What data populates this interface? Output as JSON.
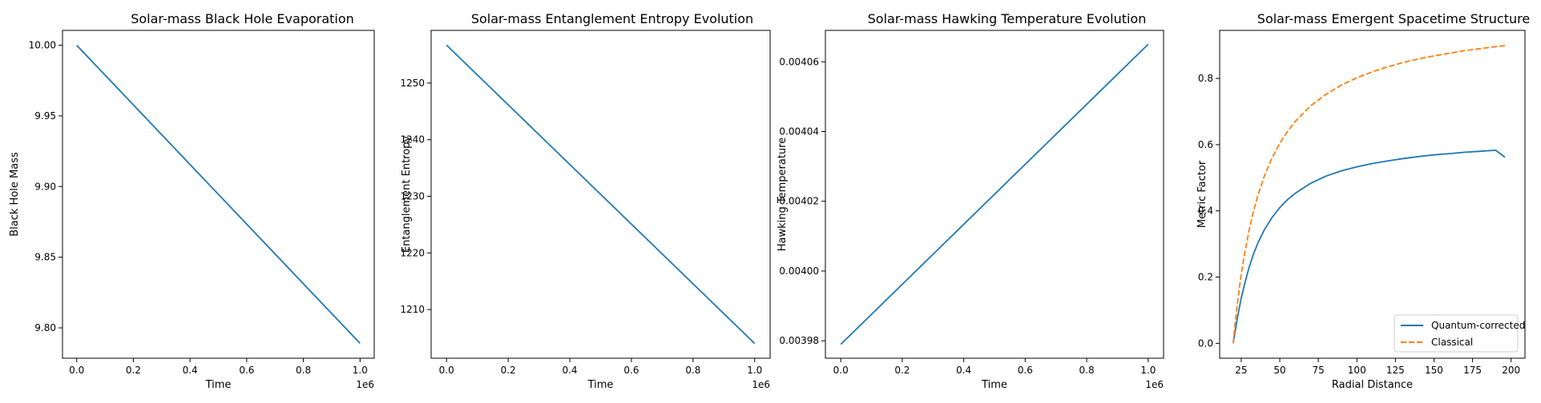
{
  "colors": {
    "blue": "#1f77b4",
    "orange": "#ff7f0e"
  },
  "chart_data": [
    {
      "type": "line",
      "title": "Solar-mass Black Hole Evaporation",
      "xlabel": "Time",
      "ylabel": "Black Hole Mass",
      "x_offset_label": "1e6",
      "xlim": [
        -0.05,
        1.05
      ],
      "ylim": [
        9.7785,
        10.0105
      ],
      "xticks": [
        0.0,
        0.2,
        0.4,
        0.6,
        0.8,
        1.0
      ],
      "xtick_labels": [
        "0.0",
        "0.2",
        "0.4",
        "0.6",
        "0.8",
        "1.0"
      ],
      "yticks": [
        9.8,
        9.85,
        9.9,
        9.95,
        10.0
      ],
      "ytick_labels": [
        "9.80",
        "9.85",
        "9.90",
        "9.95",
        "10.00"
      ],
      "grid": false,
      "series": [
        {
          "values_x": [
            0.0,
            1.0
          ],
          "values_y": [
            10.0,
            9.789
          ],
          "color": "#1f77b4",
          "dash": "solid"
        }
      ]
    },
    {
      "type": "line",
      "title": "Solar-mass Entanglement Entropy Evolution",
      "xlabel": "Time",
      "ylabel": "Entanglement Entropy",
      "x_offset_label": "1e6",
      "xlim": [
        -0.05,
        1.05
      ],
      "ylim": [
        1201.4,
        1259.3
      ],
      "xticks": [
        0.0,
        0.2,
        0.4,
        0.6,
        0.8,
        1.0
      ],
      "xtick_labels": [
        "0.0",
        "0.2",
        "0.4",
        "0.6",
        "0.8",
        "1.0"
      ],
      "yticks": [
        1210,
        1220,
        1230,
        1240,
        1250
      ],
      "ytick_labels": [
        "1210",
        "1220",
        "1230",
        "1240",
        "1250"
      ],
      "grid": false,
      "series": [
        {
          "values_x": [
            0.0,
            1.0
          ],
          "values_y": [
            1256.7,
            1204.0
          ],
          "color": "#1f77b4",
          "dash": "solid"
        }
      ]
    },
    {
      "type": "line",
      "title": "Solar-mass Hawking Temperature Evolution",
      "xlabel": "Time",
      "ylabel": "Hawking Temperature",
      "x_offset_label": "1e6",
      "xlim": [
        -0.05,
        1.05
      ],
      "ylim": [
        0.003975,
        0.004069
      ],
      "xticks": [
        0.0,
        0.2,
        0.4,
        0.6,
        0.8,
        1.0
      ],
      "xtick_labels": [
        "0.0",
        "0.2",
        "0.4",
        "0.6",
        "0.8",
        "1.0"
      ],
      "yticks": [
        0.00398,
        0.004,
        0.00402,
        0.00404,
        0.00406
      ],
      "ytick_labels": [
        "0.00398",
        "0.00400",
        "0.00402",
        "0.00404",
        "0.00406"
      ],
      "grid": false,
      "series": [
        {
          "values_x": [
            0.0,
            1.0
          ],
          "values_y": [
            0.003979,
            0.004065
          ],
          "color": "#1f77b4",
          "dash": "solid"
        }
      ]
    },
    {
      "type": "line",
      "title": "Solar-mass Emergent Spacetime Structure",
      "xlabel": "Radial Distance",
      "ylabel": "Metric Factor",
      "x_offset_label": "",
      "xlim": [
        11,
        209
      ],
      "ylim": [
        -0.045,
        0.945
      ],
      "xticks": [
        25,
        50,
        75,
        100,
        125,
        150,
        175,
        200
      ],
      "xtick_labels": [
        "25",
        "50",
        "75",
        "100",
        "125",
        "150",
        "175",
        "200"
      ],
      "yticks": [
        0.0,
        0.2,
        0.4,
        0.6,
        0.8
      ],
      "ytick_labels": [
        "0.0",
        "0.2",
        "0.4",
        "0.6",
        "0.8"
      ],
      "grid": false,
      "legend": "lower-right",
      "series": [
        {
          "name": "Quantum-corrected",
          "color": "#1f77b4",
          "dash": "solid",
          "values_x": [
            19.8,
            20,
            21,
            22,
            23,
            24,
            25,
            27,
            30,
            33,
            36,
            40,
            45,
            50,
            55,
            60,
            70,
            80,
            90,
            100,
            110,
            120,
            130,
            140,
            150,
            160,
            170,
            180,
            190,
            196
          ],
          "values_y": [
            0.0,
            0.006,
            0.035,
            0.063,
            0.089,
            0.113,
            0.136,
            0.176,
            0.228,
            0.27,
            0.305,
            0.343,
            0.38,
            0.41,
            0.434,
            0.453,
            0.483,
            0.505,
            0.521,
            0.533,
            0.543,
            0.551,
            0.558,
            0.564,
            0.569,
            0.573,
            0.577,
            0.58,
            0.583,
            0.562
          ]
        },
        {
          "name": "Classical",
          "color": "#ff7f0e",
          "dash": "dashed",
          "values_x": [
            19.8,
            20,
            21,
            22,
            23,
            24,
            25,
            27,
            30,
            33,
            36,
            40,
            45,
            50,
            55,
            60,
            70,
            80,
            90,
            100,
            110,
            120,
            130,
            140,
            150,
            160,
            170,
            180,
            190,
            196
          ],
          "values_y": [
            0.0,
            0.01,
            0.057,
            0.1,
            0.139,
            0.175,
            0.208,
            0.267,
            0.34,
            0.4,
            0.45,
            0.505,
            0.56,
            0.604,
            0.64,
            0.67,
            0.717,
            0.752,
            0.78,
            0.802,
            0.82,
            0.835,
            0.848,
            0.859,
            0.868,
            0.876,
            0.884,
            0.89,
            0.896,
            0.899
          ]
        }
      ]
    }
  ]
}
